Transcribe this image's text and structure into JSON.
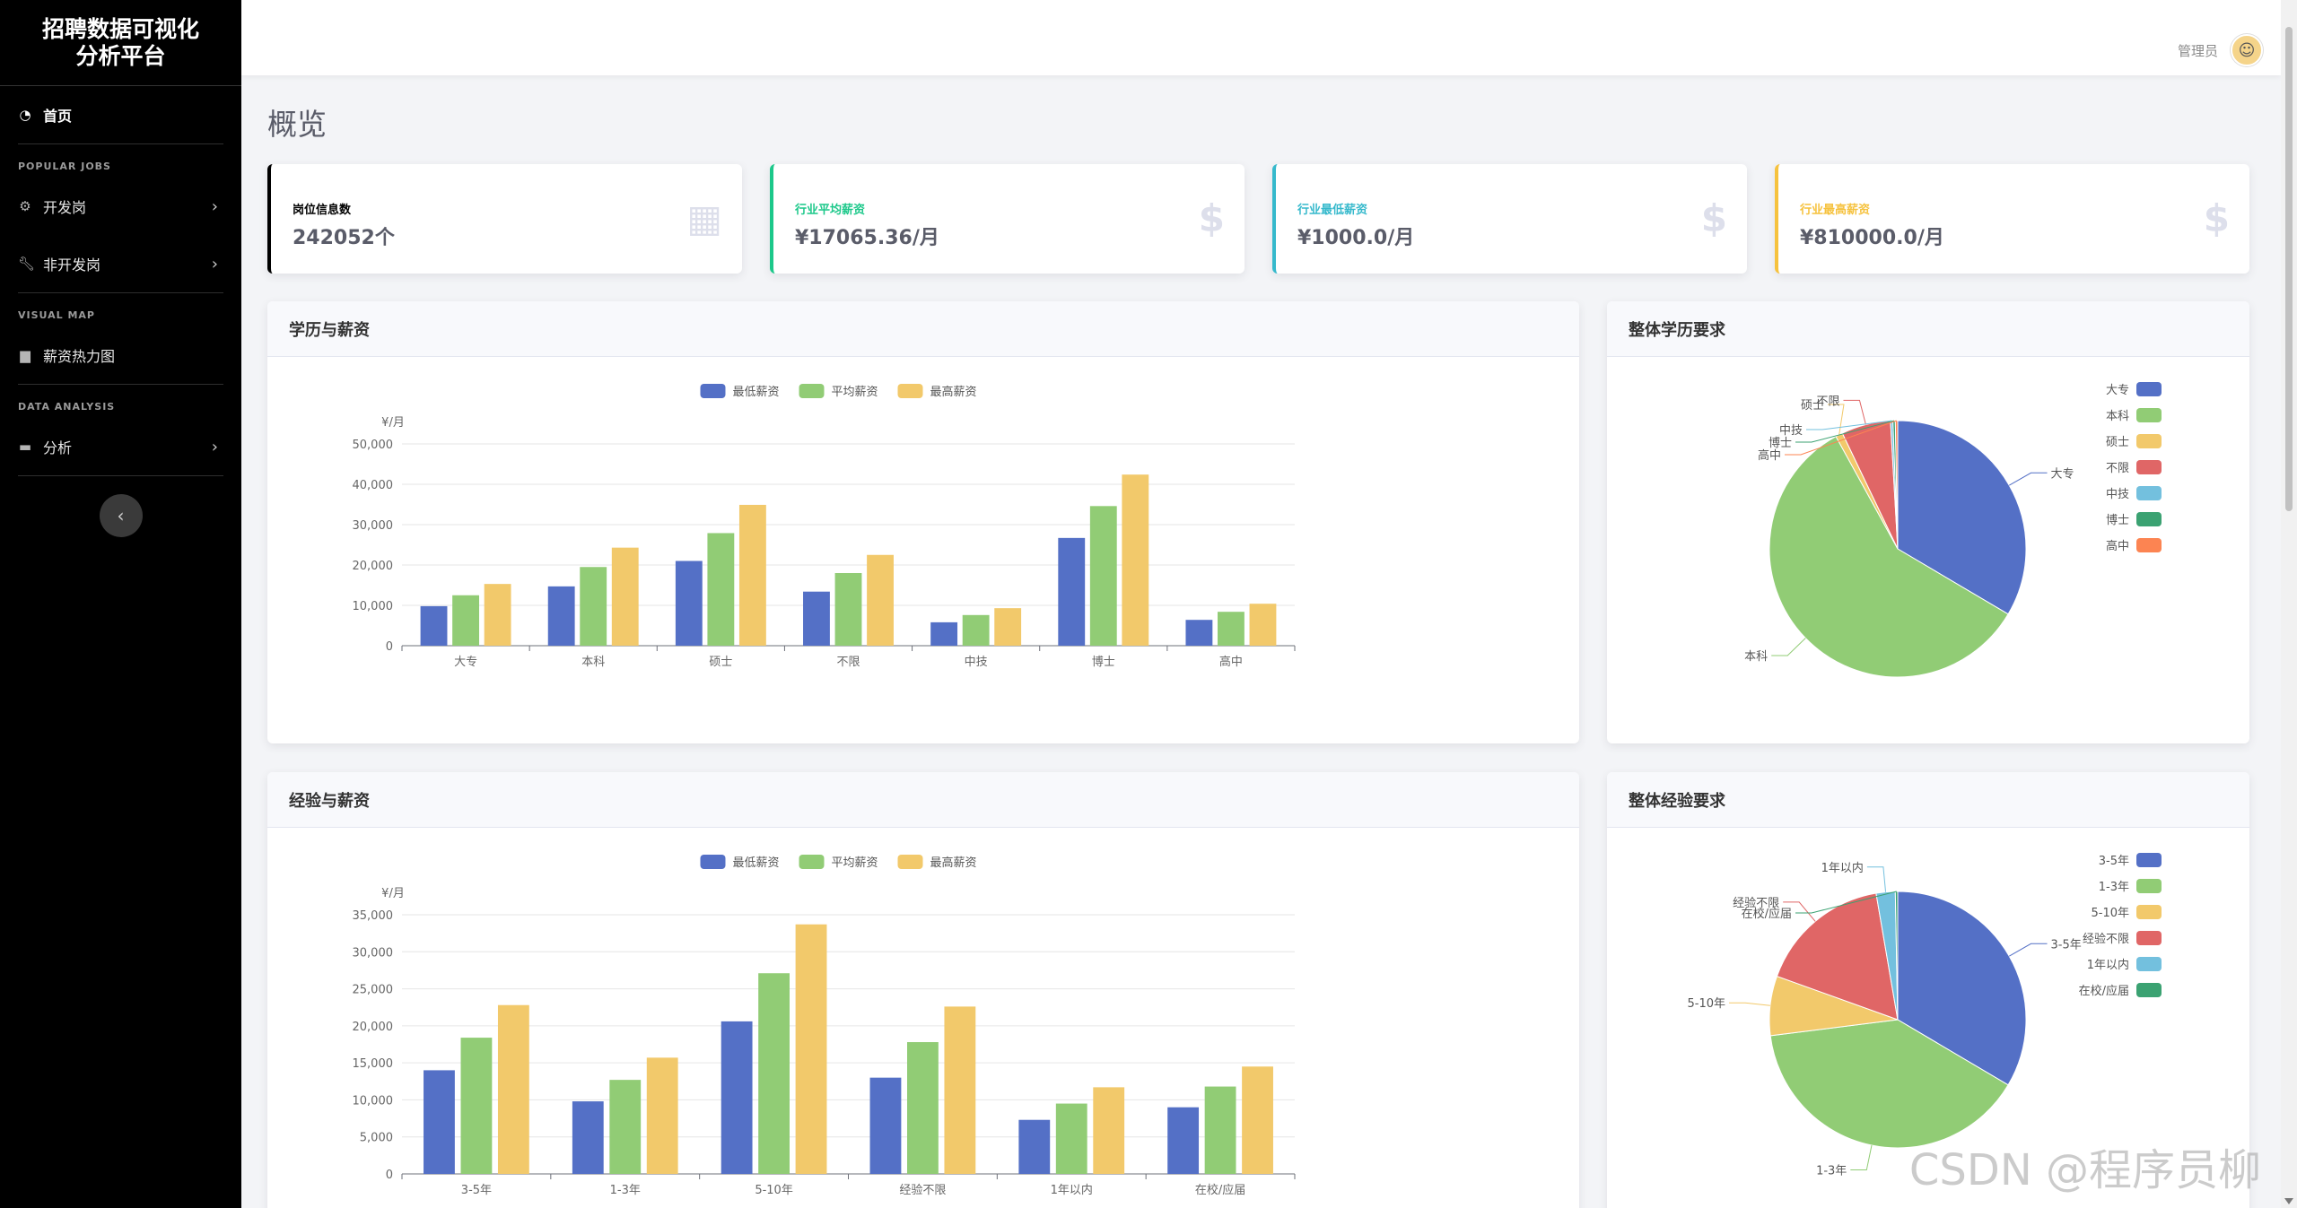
{
  "sidebar": {
    "brand": [
      "招聘数据可视化",
      "分析平台"
    ],
    "home": "首页",
    "sections": [
      {
        "heading": "POPULAR JOBS",
        "items": [
          {
            "label": "开发岗",
            "icon": "gear-icon",
            "chevron": true
          },
          {
            "label": "非开发岗",
            "icon": "wrench-icon",
            "chevron": true
          }
        ]
      },
      {
        "heading": "VISUAL MAP",
        "items": [
          {
            "label": "薪资热力图",
            "icon": "chart-icon",
            "chevron": false
          }
        ]
      },
      {
        "heading": "DATA ANALYSIS",
        "items": [
          {
            "label": "分析",
            "icon": "folder-icon",
            "chevron": true
          }
        ]
      }
    ]
  },
  "header": {
    "user": "管理员"
  },
  "page_title": "概览",
  "stats": [
    {
      "label": "岗位信息数",
      "value": "242052个",
      "color": "#000000",
      "label_color": "#000000",
      "icon": "table-icon"
    },
    {
      "label": "行业平均薪资",
      "value": "¥17065.36/月",
      "color": "#1cc88a",
      "label_color": "#1cc88a",
      "icon": "dollar-icon"
    },
    {
      "label": "行业最低薪资",
      "value": "¥1000.0/月",
      "color": "#36b9cc",
      "label_color": "#36b9cc",
      "icon": "dollar-icon"
    },
    {
      "label": "行业最高薪资",
      "value": "¥810000.0/月",
      "color": "#f6c23e",
      "label_color": "#f6c23e",
      "icon": "dollar-icon"
    }
  ],
  "panels": {
    "edu_salary": "学历与薪资",
    "edu_pie": "整体学历要求",
    "exp_salary": "经验与薪资",
    "exp_pie": "整体经验要求"
  },
  "watermark": "CSDN @程序员柳",
  "chart_data": [
    {
      "id": "edu_salary",
      "type": "bar",
      "ylabel": "¥/月",
      "ylim": [
        0,
        50000
      ],
      "yticks": [
        0,
        10000,
        20000,
        30000,
        40000,
        50000
      ],
      "categories": [
        "大专",
        "本科",
        "硕士",
        "不限",
        "中技",
        "博士",
        "高中"
      ],
      "series": [
        {
          "name": "最低薪资",
          "color": "#5470c6",
          "values": [
            9800,
            14700,
            21000,
            13400,
            5800,
            26700,
            6400
          ]
        },
        {
          "name": "平均薪资",
          "color": "#91cc75",
          "values": [
            12500,
            19500,
            27900,
            18000,
            7600,
            34600,
            8400
          ]
        },
        {
          "name": "最高薪资",
          "color": "#f2c96b",
          "values": [
            15300,
            24300,
            34900,
            22500,
            9300,
            42400,
            10400
          ]
        }
      ],
      "legend": "top-center",
      "grid": true
    },
    {
      "id": "edu_pie",
      "type": "pie",
      "legend": "top-right",
      "slices": [
        {
          "name": "大专",
          "value": 33.5,
          "color": "#5470c6"
        },
        {
          "name": "本科",
          "value": 58.5,
          "color": "#91cc75"
        },
        {
          "name": "硕士",
          "value": 0.9,
          "color": "#f2c96b"
        },
        {
          "name": "不限",
          "value": 6.2,
          "color": "#e06666"
        },
        {
          "name": "中技",
          "value": 0.3,
          "color": "#73c0de"
        },
        {
          "name": "博士",
          "value": 0.3,
          "color": "#3ba272"
        },
        {
          "name": "高中",
          "value": 0.3,
          "color": "#fc8452"
        }
      ]
    },
    {
      "id": "exp_salary",
      "type": "bar",
      "ylabel": "¥/月",
      "ylim": [
        0,
        35000
      ],
      "yticks": [
        0,
        5000,
        10000,
        15000,
        20000,
        25000,
        30000,
        35000
      ],
      "categories": [
        "3-5年",
        "1-3年",
        "5-10年",
        "经验不限",
        "1年以内",
        "在校/应届"
      ],
      "series": [
        {
          "name": "最低薪资",
          "color": "#5470c6",
          "values": [
            14000,
            9800,
            20600,
            13000,
            7300,
            9000
          ]
        },
        {
          "name": "平均薪资",
          "color": "#91cc75",
          "values": [
            18400,
            12700,
            27100,
            17800,
            9500,
            11800
          ]
        },
        {
          "name": "最高薪资",
          "color": "#f2c96b",
          "values": [
            22800,
            15700,
            33700,
            22600,
            11700,
            14500
          ]
        }
      ],
      "legend": "top-center",
      "grid": true
    },
    {
      "id": "exp_pie",
      "type": "pie",
      "legend": "top-right",
      "slices": [
        {
          "name": "3-5年",
          "value": 33.5,
          "color": "#5470c6"
        },
        {
          "name": "1-3年",
          "value": 39.5,
          "color": "#91cc75"
        },
        {
          "name": "5-10年",
          "value": 7.5,
          "color": "#f2c96b"
        },
        {
          "name": "经验不限",
          "value": 16.8,
          "color": "#e06666"
        },
        {
          "name": "1年以内",
          "value": 2.4,
          "color": "#73c0de"
        },
        {
          "name": "在校/应届",
          "value": 0.3,
          "color": "#3ba272"
        }
      ]
    }
  ]
}
